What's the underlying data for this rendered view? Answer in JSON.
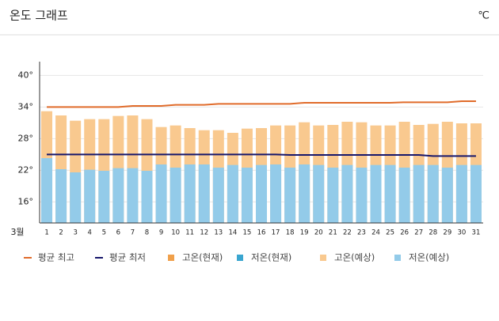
{
  "chart_data": {
    "type": "bar",
    "title": "온도 그래프",
    "unit": "℃",
    "x_label": "3월",
    "categories": [
      "1",
      "2",
      "3",
      "4",
      "5",
      "6",
      "7",
      "8",
      "9",
      "10",
      "11",
      "12",
      "13",
      "14",
      "15",
      "16",
      "17",
      "18",
      "19",
      "20",
      "21",
      "22",
      "23",
      "24",
      "25",
      "26",
      "27",
      "28",
      "29",
      "30",
      "31"
    ],
    "ylim": [
      12,
      42
    ],
    "yticks": [
      {
        "value": 16,
        "label": "16°"
      },
      {
        "value": 22,
        "label": "22°"
      },
      {
        "value": 28,
        "label": "28°"
      },
      {
        "value": 34,
        "label": "34°"
      },
      {
        "value": 40,
        "label": "40°"
      }
    ],
    "grid": true,
    "series": [
      {
        "name": "평균 최고",
        "type": "line",
        "color": "#e06b2a",
        "values": [
          34.0,
          34.0,
          34.0,
          34.0,
          34.0,
          34.0,
          34.2,
          34.2,
          34.2,
          34.4,
          34.4,
          34.4,
          34.6,
          34.6,
          34.6,
          34.6,
          34.6,
          34.6,
          34.8,
          34.8,
          34.8,
          34.8,
          34.8,
          34.8,
          34.8,
          34.9,
          34.9,
          34.9,
          34.9,
          35.1,
          35.1
        ]
      },
      {
        "name": "평균 최저",
        "type": "line",
        "color": "#16166b",
        "values": [
          25.0,
          25.0,
          25.0,
          25.0,
          25.0,
          25.0,
          25.0,
          25.0,
          25.0,
          25.0,
          25.0,
          25.0,
          25.0,
          25.0,
          25.0,
          25.0,
          25.0,
          24.9,
          24.9,
          24.9,
          24.9,
          24.9,
          24.9,
          24.9,
          24.9,
          24.9,
          24.9,
          24.7,
          24.7,
          24.7,
          24.7
        ]
      },
      {
        "name": "고온(현재)",
        "type": "bar",
        "color": "#f0a04b",
        "values": [
          null,
          null,
          null,
          null,
          null,
          null,
          null,
          null,
          null,
          null,
          null,
          null,
          null,
          null,
          null,
          null,
          null,
          null,
          null,
          null,
          null,
          null,
          null,
          null,
          null,
          null,
          null,
          null,
          null,
          null,
          null
        ]
      },
      {
        "name": "저온(현재)",
        "type": "bar",
        "color": "#3aa6d0",
        "values": [
          null,
          null,
          null,
          null,
          null,
          null,
          null,
          null,
          null,
          null,
          null,
          null,
          null,
          null,
          null,
          null,
          null,
          null,
          null,
          null,
          null,
          null,
          null,
          null,
          null,
          null,
          null,
          null,
          null,
          null,
          null
        ]
      },
      {
        "name": "고온(예상)",
        "type": "bar",
        "color": "#f9c98f",
        "values": [
          33.2,
          32.4,
          31.4,
          31.7,
          31.7,
          32.3,
          32.4,
          31.7,
          30.2,
          30.5,
          30.0,
          29.6,
          29.6,
          29.1,
          29.9,
          30.0,
          30.5,
          30.5,
          31.1,
          30.5,
          30.6,
          31.2,
          31.1,
          30.5,
          30.5,
          31.2,
          30.6,
          30.8,
          31.2,
          30.9,
          30.9
        ]
      },
      {
        "name": "저온(예상)",
        "type": "bar",
        "color": "#93cbe9",
        "values": [
          24.3,
          22.2,
          21.6,
          22.1,
          21.9,
          22.4,
          22.4,
          21.9,
          23.1,
          22.5,
          23.1,
          23.1,
          22.5,
          23.0,
          22.5,
          23.0,
          23.1,
          22.5,
          23.1,
          23.0,
          22.5,
          23.0,
          22.5,
          23.0,
          23.0,
          22.5,
          23.0,
          23.0,
          22.5,
          23.0,
          23.0
        ]
      }
    ]
  }
}
